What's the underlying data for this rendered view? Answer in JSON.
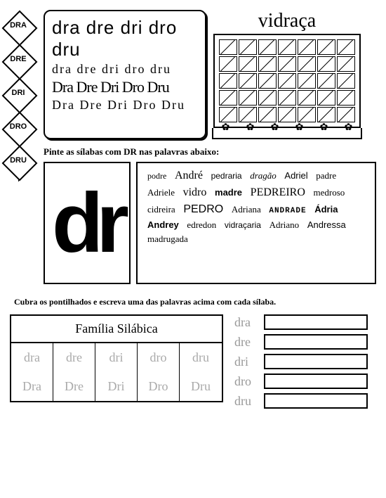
{
  "rail": [
    "DRA",
    "DRE",
    "DRI",
    "DRO",
    "DRU"
  ],
  "syllable_rows": {
    "sans": "dra dre dri dro dru",
    "script1": "dra dre dri dro dru",
    "serif": "Dra Dre Dri Dro Dru",
    "script2": "Dra Dre Dri Dro Dru"
  },
  "window_title": "vidraça",
  "instruction1": "Pinte as sílabas com DR nas palavras abaixo:",
  "dr_label": "dr",
  "words": [
    {
      "t": "podre",
      "c": "f-serif f-small"
    },
    {
      "t": "André",
      "c": "f-serif f-big"
    },
    {
      "t": "pedraria",
      "c": "f-arial f-small"
    },
    {
      "t": "dragão",
      "c": "f-italic"
    },
    {
      "t": "Adriel",
      "c": "f-arial"
    },
    {
      "t": "padre",
      "c": "f-serif"
    },
    {
      "t": "Adriele",
      "c": "f-serif"
    },
    {
      "t": "vidro",
      "c": "f-script"
    },
    {
      "t": "madre",
      "c": "f-condensed"
    },
    {
      "t": "PEDREIRO",
      "c": "f-serif f-big"
    },
    {
      "t": "medroso",
      "c": "f-serif"
    },
    {
      "t": "cidreira",
      "c": "f-serif"
    },
    {
      "t": "PEDRO",
      "c": "f-arial f-big"
    },
    {
      "t": "Adriana",
      "c": "f-serif"
    },
    {
      "t": "ANDRADE",
      "c": "f-western"
    },
    {
      "t": "Ádria",
      "c": "f-condensed"
    },
    {
      "t": "Andrey",
      "c": "f-arial f-bold"
    },
    {
      "t": "edredon",
      "c": "f-serif"
    },
    {
      "t": "vidraçaria",
      "c": "f-arial f-small"
    },
    {
      "t": "Adriano",
      "c": "f-serif"
    },
    {
      "t": "Andressa",
      "c": "f-arial"
    },
    {
      "t": "madrugada",
      "c": "f-serif"
    }
  ],
  "instruction2": "Cubra os pontilhados e escreva uma das palavras acima com cada sílaba.",
  "familia_title": "Família Silábica",
  "familia_cells": [
    {
      "lower": "dra",
      "upper": "Dra"
    },
    {
      "lower": "dre",
      "upper": "Dre"
    },
    {
      "lower": "dri",
      "upper": "Dri"
    },
    {
      "lower": "dro",
      "upper": "Dro"
    },
    {
      "lower": "dru",
      "upper": "Dru"
    }
  ],
  "write_labels": [
    "dra",
    "dre",
    "dri",
    "dro",
    "dru"
  ]
}
